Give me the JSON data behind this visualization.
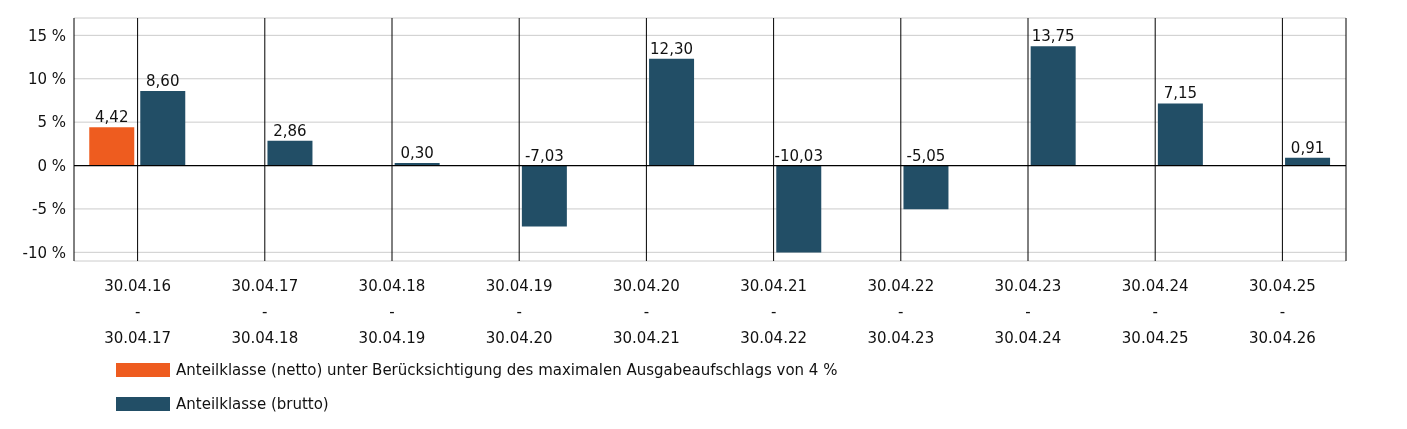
{
  "chart_data": {
    "type": "bar",
    "categories": [
      "30.04.16\n-\n30.04.17",
      "30.04.17\n-\n30.04.18",
      "30.04.18\n-\n30.04.19",
      "30.04.19\n-\n30.04.20",
      "30.04.20\n-\n30.04.21",
      "30.04.21\n-\n30.04.22",
      "30.04.22\n-\n30.04.23",
      "30.04.23\n-\n30.04.24",
      "30.04.24\n-\n30.04.25",
      "30.04.25\n-\n30.04.26"
    ],
    "series": [
      {
        "name": "Anteilklasse (netto) unter Berücksichtigung des maximalen Ausgabeaufschlags von 4 %",
        "color": "#ee5c1f",
        "values": [
          4.42,
          null,
          null,
          null,
          null,
          null,
          null,
          null,
          null,
          null
        ],
        "value_labels": [
          "4,42",
          null,
          null,
          null,
          null,
          null,
          null,
          null,
          null,
          null
        ]
      },
      {
        "name": "Anteilklasse (brutto)",
        "color": "#224e66",
        "values": [
          8.6,
          2.86,
          0.3,
          -7.03,
          12.3,
          -10.03,
          -5.05,
          13.75,
          7.15,
          0.91
        ],
        "value_labels": [
          "8,60",
          "2,86",
          "0,30",
          "-7,03",
          "12,30",
          "-10,03",
          "-5,05",
          "13,75",
          "7,15",
          "0,91"
        ]
      }
    ],
    "ylim": [
      -11,
      17
    ],
    "yticks": [
      {
        "value": -10,
        "label": "-10 %"
      },
      {
        "value": -5,
        "label": "-5 %"
      },
      {
        "value": 0,
        "label": "0 %"
      },
      {
        "value": 5,
        "label": "5 %"
      },
      {
        "value": 10,
        "label": "10 %"
      },
      {
        "value": 15,
        "label": "15 %"
      }
    ],
    "grid": true,
    "legend": "bottom left"
  }
}
